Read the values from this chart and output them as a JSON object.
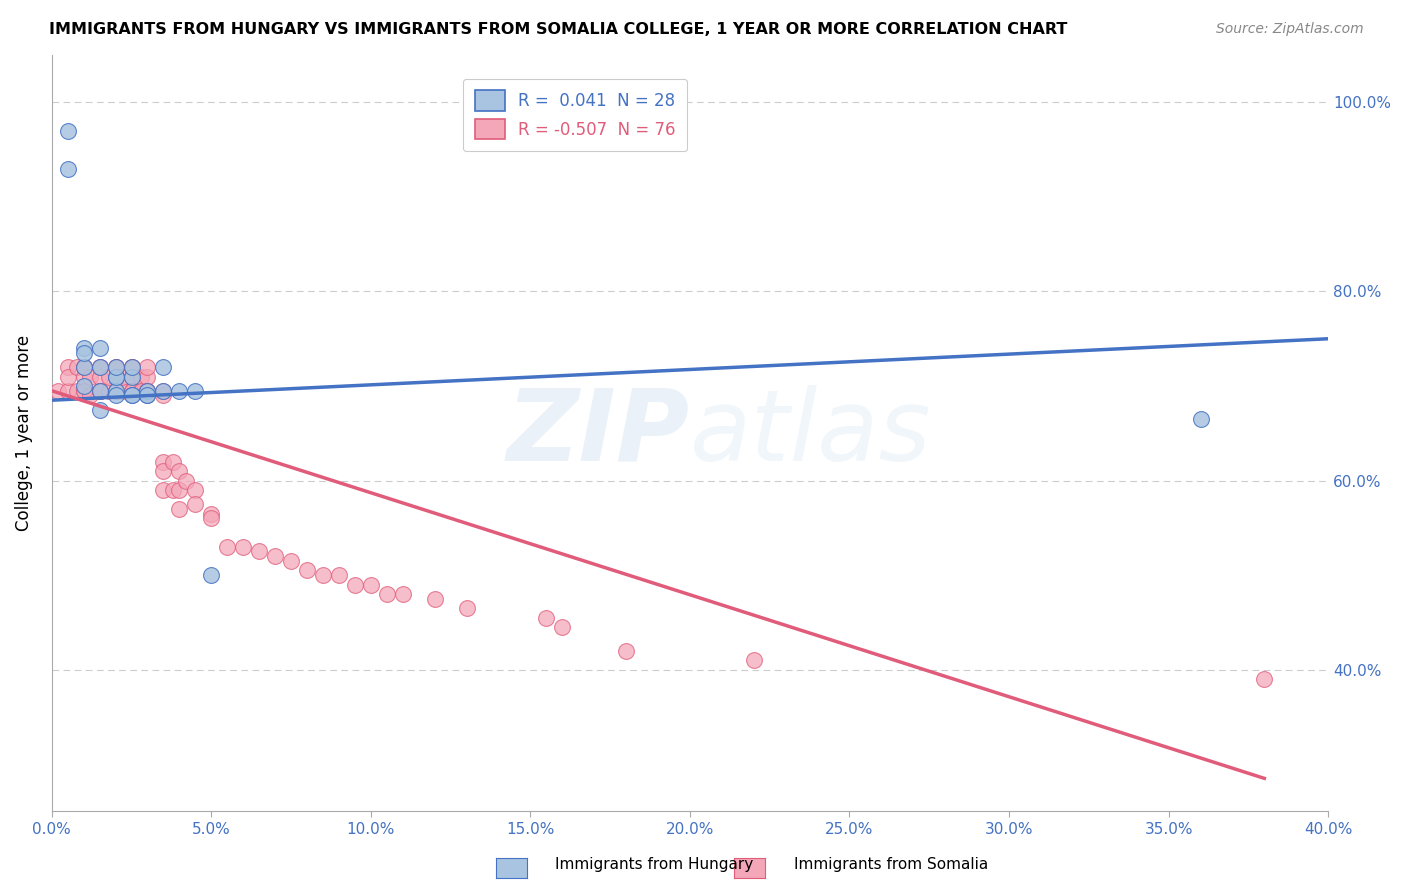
{
  "title": "IMMIGRANTS FROM HUNGARY VS IMMIGRANTS FROM SOMALIA COLLEGE, 1 YEAR OR MORE CORRELATION CHART",
  "source": "Source: ZipAtlas.com",
  "ylabel": "College, 1 year or more",
  "legend_hungary": "R =  0.041  N = 28",
  "legend_somalia": "R = -0.507  N = 76",
  "legend_label_hungary": "Immigrants from Hungary",
  "legend_label_somalia": "Immigrants from Somalia",
  "hungary_color": "#a8c4e0",
  "somalia_color": "#f4a7b9",
  "hungary_line_color": "#4472c4",
  "somalia_line_color": "#e05c7a",
  "xmin": 0.0,
  "xmax": 0.4,
  "ymin": 0.25,
  "ymax": 1.05,
  "hungary_trend_x0": 0.0,
  "hungary_trend_y0": 0.685,
  "hungary_trend_x1": 0.4,
  "hungary_trend_y1": 0.75,
  "somalia_trend_x0": 0.0,
  "somalia_trend_y0": 0.695,
  "somalia_trend_x1": 0.38,
  "somalia_trend_y1": 0.285,
  "hungary_scatter_x": [
    0.005,
    0.005,
    0.01,
    0.01,
    0.01,
    0.01,
    0.015,
    0.015,
    0.015,
    0.015,
    0.02,
    0.02,
    0.02,
    0.02,
    0.02,
    0.025,
    0.025,
    0.025,
    0.025,
    0.03,
    0.03,
    0.03,
    0.035,
    0.035,
    0.04,
    0.045,
    0.05,
    0.36
  ],
  "hungary_scatter_y": [
    0.97,
    0.93,
    0.74,
    0.72,
    0.735,
    0.7,
    0.74,
    0.72,
    0.695,
    0.675,
    0.71,
    0.695,
    0.69,
    0.71,
    0.72,
    0.69,
    0.69,
    0.71,
    0.72,
    0.69,
    0.695,
    0.69,
    0.695,
    0.72,
    0.695,
    0.695,
    0.5,
    0.665
  ],
  "somalia_scatter_x": [
    0.002,
    0.005,
    0.005,
    0.005,
    0.008,
    0.008,
    0.01,
    0.01,
    0.01,
    0.01,
    0.01,
    0.012,
    0.012,
    0.015,
    0.015,
    0.015,
    0.015,
    0.015,
    0.015,
    0.018,
    0.018,
    0.02,
    0.02,
    0.02,
    0.02,
    0.02,
    0.022,
    0.022,
    0.025,
    0.025,
    0.025,
    0.025,
    0.025,
    0.025,
    0.028,
    0.028,
    0.028,
    0.03,
    0.03,
    0.03,
    0.03,
    0.03,
    0.035,
    0.035,
    0.035,
    0.035,
    0.035,
    0.038,
    0.038,
    0.04,
    0.04,
    0.04,
    0.042,
    0.045,
    0.045,
    0.05,
    0.05,
    0.055,
    0.06,
    0.065,
    0.07,
    0.075,
    0.08,
    0.085,
    0.09,
    0.095,
    0.1,
    0.105,
    0.11,
    0.12,
    0.13,
    0.155,
    0.16,
    0.18,
    0.22,
    0.38
  ],
  "somalia_scatter_y": [
    0.695,
    0.72,
    0.695,
    0.71,
    0.72,
    0.695,
    0.72,
    0.695,
    0.71,
    0.72,
    0.695,
    0.69,
    0.71,
    0.72,
    0.695,
    0.71,
    0.695,
    0.72,
    0.695,
    0.695,
    0.71,
    0.72,
    0.695,
    0.71,
    0.72,
    0.695,
    0.695,
    0.71,
    0.72,
    0.695,
    0.71,
    0.695,
    0.72,
    0.695,
    0.695,
    0.71,
    0.695,
    0.695,
    0.71,
    0.695,
    0.72,
    0.695,
    0.69,
    0.695,
    0.62,
    0.61,
    0.59,
    0.62,
    0.59,
    0.61,
    0.59,
    0.57,
    0.6,
    0.59,
    0.575,
    0.565,
    0.56,
    0.53,
    0.53,
    0.525,
    0.52,
    0.515,
    0.505,
    0.5,
    0.5,
    0.49,
    0.49,
    0.48,
    0.48,
    0.475,
    0.465,
    0.455,
    0.445,
    0.42,
    0.41,
    0.39
  ],
  "watermark_zip": "ZIP",
  "watermark_atlas": "atlas",
  "background_color": "#ffffff",
  "grid_color": "#cccccc"
}
